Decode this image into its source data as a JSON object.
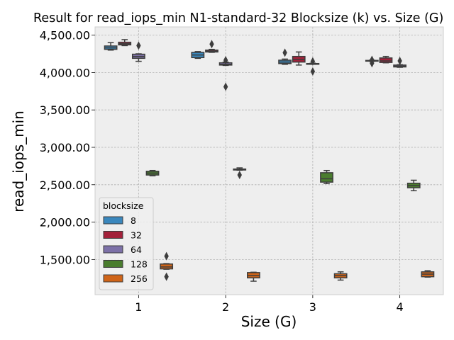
{
  "chart_data": {
    "type": "box",
    "title": "Result for read_iops_min N1-standard-32 Blocksize (k) vs. Size (G)",
    "xlabel": "Size (G)",
    "ylabel": "read_iops_min",
    "categories": [
      "1",
      "2",
      "3",
      "4"
    ],
    "ylim": [
      1030,
      4610
    ],
    "yticks": [
      1500,
      2000,
      2500,
      3000,
      3500,
      4000,
      4500
    ],
    "ytick_labels": [
      "1,500.00",
      "2,000.00",
      "2,500.00",
      "3,000.00",
      "3,500.00",
      "4,000.00",
      "4,500.00"
    ],
    "grid": true,
    "legend": {
      "title": "blocksize",
      "placement": "lower-left"
    },
    "series": [
      {
        "name": "8",
        "color": "#3a87bd",
        "boxes": [
          {
            "category": "1",
            "whislo": 4300,
            "q1": 4310,
            "med": 4330,
            "q3": 4355,
            "whishi": 4400,
            "fliers": []
          },
          {
            "category": "2",
            "whislo": 4190,
            "q1": 4200,
            "med": 4235,
            "q3": 4270,
            "whishi": 4280,
            "fliers": []
          },
          {
            "category": "3",
            "whislo": 4110,
            "q1": 4120,
            "med": 4140,
            "q3": 4165,
            "whishi": 4180,
            "fliers": [
              4265
            ]
          },
          {
            "category": "4",
            "whislo": 4150,
            "q1": 4155,
            "med": 4158,
            "q3": 4162,
            "whishi": 4165,
            "fliers": [
              4170,
              4125
            ]
          }
        ]
      },
      {
        "name": "32",
        "color": "#a3213a",
        "boxes": [
          {
            "category": "1",
            "whislo": 4360,
            "q1": 4370,
            "med": 4385,
            "q3": 4405,
            "whishi": 4440,
            "fliers": []
          },
          {
            "category": "2",
            "whislo": 4270,
            "q1": 4275,
            "med": 4285,
            "q3": 4300,
            "whishi": 4310,
            "fliers": [
              4380
            ]
          },
          {
            "category": "3",
            "whislo": 4100,
            "q1": 4140,
            "med": 4175,
            "q3": 4215,
            "whishi": 4275,
            "fliers": []
          },
          {
            "category": "4",
            "whislo": 4130,
            "q1": 4135,
            "med": 4155,
            "q3": 4195,
            "whishi": 4215,
            "fliers": []
          }
        ]
      },
      {
        "name": "64",
        "color": "#7d71a8",
        "boxes": [
          {
            "category": "1",
            "whislo": 4150,
            "q1": 4190,
            "med": 4215,
            "q3": 4245,
            "whishi": 4250,
            "fliers": [
              4360
            ]
          },
          {
            "category": "2",
            "whislo": 4095,
            "q1": 4100,
            "med": 4110,
            "q3": 4130,
            "whishi": 4140,
            "fliers": [
              4165,
              3810
            ]
          },
          {
            "category": "3",
            "whislo": 4110,
            "q1": 4112,
            "med": 4115,
            "q3": 4120,
            "whishi": 4125,
            "fliers": [
              4150,
              4015
            ]
          },
          {
            "category": "4",
            "whislo": 4070,
            "q1": 4075,
            "med": 4085,
            "q3": 4100,
            "whishi": 4105,
            "fliers": [
              4155
            ]
          }
        ]
      },
      {
        "name": "128",
        "color": "#4a7d2e",
        "boxes": [
          {
            "category": "1",
            "whislo": 2620,
            "q1": 2630,
            "med": 2655,
            "q3": 2680,
            "whishi": 2690,
            "fliers": []
          },
          {
            "category": "2",
            "whislo": 2695,
            "q1": 2697,
            "med": 2700,
            "q3": 2710,
            "whishi": 2725,
            "fliers": [
              2630
            ]
          },
          {
            "category": "3",
            "whislo": 2515,
            "q1": 2535,
            "med": 2580,
            "q3": 2660,
            "whishi": 2690,
            "fliers": []
          },
          {
            "category": "4",
            "whislo": 2420,
            "q1": 2460,
            "med": 2490,
            "q3": 2520,
            "whishi": 2560,
            "fliers": []
          }
        ]
      },
      {
        "name": "256",
        "color": "#cf6418",
        "boxes": [
          {
            "category": "1",
            "whislo": 1370,
            "q1": 1375,
            "med": 1400,
            "q3": 1440,
            "whishi": 1445,
            "fliers": [
              1545,
              1270
            ]
          },
          {
            "category": "2",
            "whislo": 1210,
            "q1": 1255,
            "med": 1285,
            "q3": 1325,
            "whishi": 1330,
            "fliers": []
          },
          {
            "category": "3",
            "whislo": 1225,
            "q1": 1255,
            "med": 1285,
            "q3": 1310,
            "whishi": 1335,
            "fliers": []
          },
          {
            "category": "4",
            "whislo": 1265,
            "q1": 1270,
            "med": 1305,
            "q3": 1335,
            "whishi": 1350,
            "fliers": []
          }
        ]
      }
    ]
  }
}
